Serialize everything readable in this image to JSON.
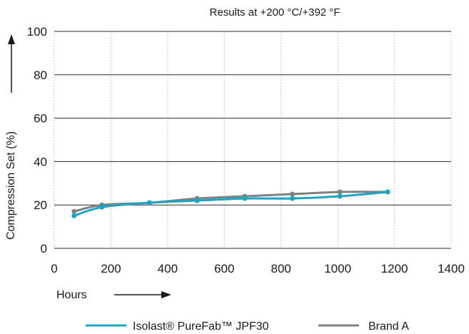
{
  "chart_data": {
    "type": "line",
    "title": "Results at +200 °C/+392 °F",
    "xlabel": "Hours",
    "ylabel": "Compression Set (%)",
    "xlim": [
      0,
      1400
    ],
    "ylim": [
      0,
      100
    ],
    "x_ticks": [
      "0",
      "200",
      "400",
      "600",
      "800",
      "1000",
      "1200",
      "1400"
    ],
    "y_ticks": [
      "0",
      "20",
      "40",
      "60",
      "80",
      "100"
    ],
    "grid": {
      "x": "dotted vertical",
      "y": "solid horizontal"
    },
    "legend_position": "bottom",
    "series": [
      {
        "name": "Isolast® PureFab™ JPF30",
        "color": "#1aa6c4",
        "x": [
          70,
          168,
          336,
          504,
          672,
          840,
          1008,
          1176
        ],
        "y": [
          15,
          19,
          21,
          22,
          23,
          23,
          24,
          26
        ]
      },
      {
        "name": "Brand A",
        "color": "#808080",
        "x": [
          70,
          168,
          336,
          504,
          672,
          840,
          1008,
          1176
        ],
        "y": [
          17,
          20,
          21,
          23,
          24,
          25,
          26,
          26
        ]
      }
    ]
  }
}
